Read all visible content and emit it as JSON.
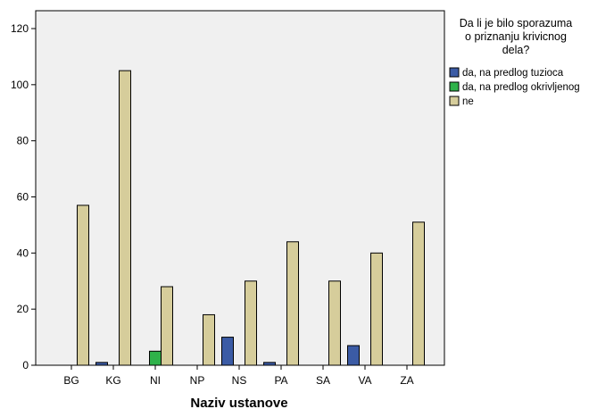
{
  "chart_data": {
    "type": "bar",
    "title": "",
    "xlabel": "Naziv ustanove",
    "ylabel": "",
    "ylim": [
      0,
      120
    ],
    "yticks": [
      0,
      20,
      40,
      60,
      80,
      100,
      120
    ],
    "grid": false,
    "legend_placement": "right",
    "categories": [
      "BG",
      "KG",
      "NI",
      "NP",
      "NS",
      "PA",
      "SA",
      "VA",
      "ZA"
    ],
    "legend_title": [
      "Da li je bilo sporazuma",
      "o priznanju krivicnog",
      "dela?"
    ],
    "series": [
      {
        "name": "da, na predlog tuzioca",
        "color": "#3b5ba5",
        "values": [
          0,
          1,
          0,
          0,
          10,
          1,
          0,
          7,
          0
        ]
      },
      {
        "name": "da, na predlog okrivljenog",
        "color": "#2fb24a",
        "values": [
          0,
          0,
          5,
          0,
          0,
          0,
          0,
          0,
          0
        ]
      },
      {
        "name": "ne",
        "color": "#d6cd9b",
        "values": [
          57,
          105,
          28,
          18,
          30,
          44,
          30,
          40,
          51
        ]
      }
    ],
    "plot_background": "#f0f0f0"
  }
}
